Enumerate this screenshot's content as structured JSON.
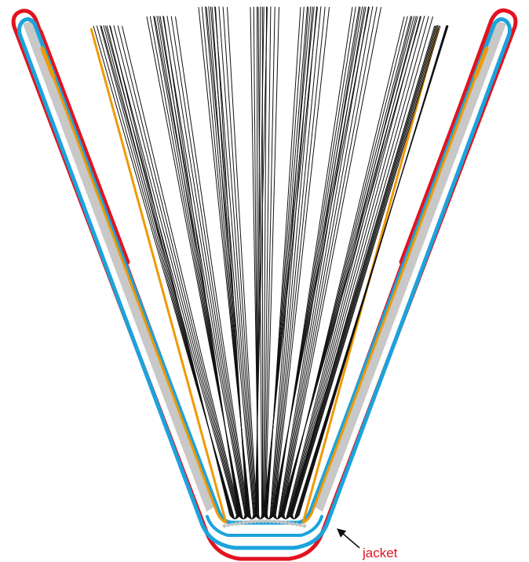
{
  "diagram": {
    "subject": "book-binding-cross-section",
    "callout": {
      "label": "jacket"
    },
    "colors": {
      "jacket": "#e2131f",
      "cover": "#1ba3dc",
      "board": "#c8c8c8",
      "endpaper": "#ee9a06",
      "pages": "#111111",
      "sewing": "#c4c4c4",
      "callout_text": "#e2131f",
      "arrow": "#111111"
    },
    "parts": {
      "page_signatures": 8,
      "leaves_per_signature": 6
    }
  }
}
